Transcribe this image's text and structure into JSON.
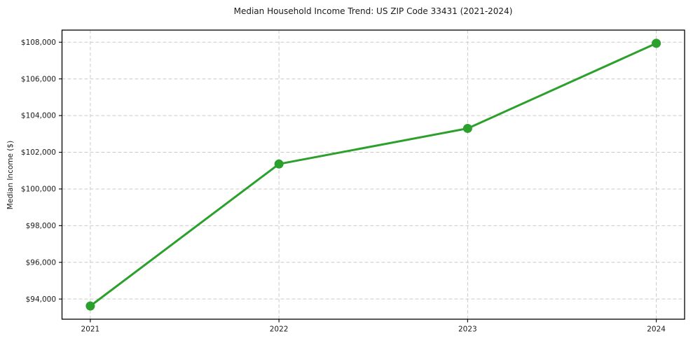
{
  "chart_data": {
    "type": "line",
    "title": "Median Household Income Trend: US ZIP Code 33431 (2021-2024)",
    "xlabel": "",
    "ylabel": "Median Income ($)",
    "categories": [
      "2021",
      "2022",
      "2023",
      "2024"
    ],
    "x": [
      2021,
      2022,
      2023,
      2024
    ],
    "values": [
      93620,
      101360,
      103300,
      107940
    ],
    "y_ticks": [
      94000,
      96000,
      98000,
      100000,
      102000,
      104000,
      106000,
      108000
    ],
    "y_tick_labels": [
      "$94,000",
      "$96,000",
      "$98,000",
      "$100,000",
      "$102,000",
      "$104,000",
      "$106,000",
      "$108,000"
    ],
    "xlim": [
      2020.85,
      2024.15
    ],
    "ylim": [
      92900,
      108660
    ],
    "grid": true,
    "legend": false,
    "marker": "circle",
    "line_color": "#2ca02c",
    "grid_color": "#c9c9c9",
    "axis_color": "#000000",
    "text_color": "#1a1a1a",
    "background": "#ffffff"
  }
}
